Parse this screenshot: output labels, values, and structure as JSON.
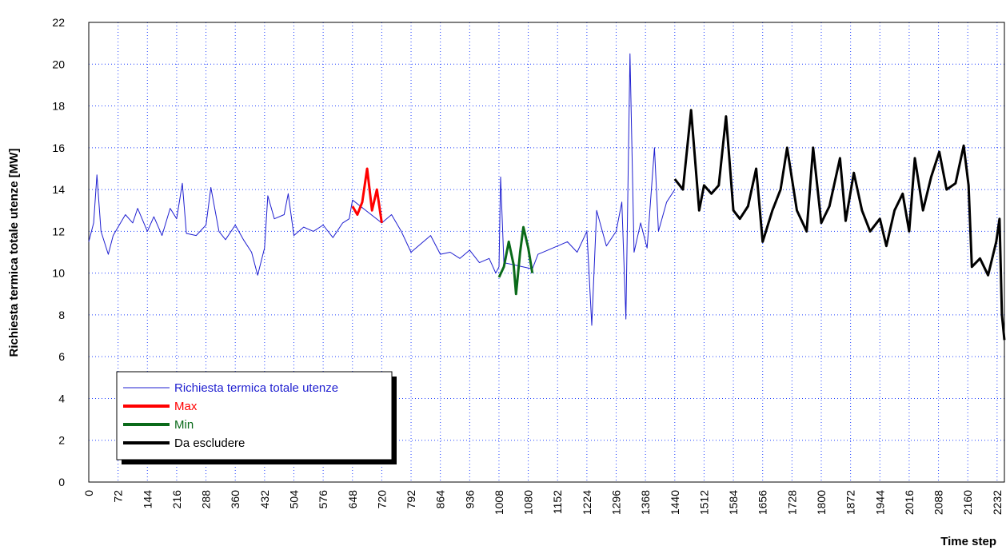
{
  "chart_data": {
    "type": "line",
    "ylabel": "Richiesta termica totale utenze [MW]",
    "xlabel": "Time step",
    "xlim": [
      0,
      2250
    ],
    "ylim": [
      0,
      22
    ],
    "xticks": [
      0,
      72,
      144,
      216,
      288,
      360,
      432,
      504,
      576,
      648,
      720,
      792,
      864,
      936,
      1008,
      1080,
      1152,
      1224,
      1296,
      1368,
      1440,
      1512,
      1584,
      1656,
      1728,
      1800,
      1872,
      1944,
      2016,
      2088,
      2160,
      2232
    ],
    "yticks": [
      0,
      2,
      4,
      6,
      8,
      10,
      12,
      14,
      16,
      18,
      20,
      22
    ],
    "grid": true,
    "legend": "lower left",
    "series": [
      {
        "name": "Richiesta termica totale utenze",
        "color": "#1f1fd0",
        "x": [
          0,
          12,
          20,
          30,
          48,
          60,
          72,
          90,
          108,
          120,
          144,
          160,
          180,
          200,
          216,
          230,
          240,
          264,
          288,
          300,
          320,
          336,
          360,
          380,
          400,
          415,
          432,
          440,
          456,
          480,
          490,
          504,
          528,
          552,
          576,
          600,
          624,
          640,
          648,
          720,
          744,
          768,
          792,
          816,
          840,
          864,
          888,
          912,
          936,
          960,
          984,
          1000,
          1008,
          1012,
          1020,
          1090,
          1104,
          1128,
          1152,
          1176,
          1200,
          1224,
          1236,
          1248,
          1272,
          1296,
          1310,
          1320,
          1330,
          1340,
          1356,
          1372,
          1390,
          1400,
          1420,
          1440
        ],
        "values": [
          11.5,
          12.4,
          14.7,
          12.0,
          10.9,
          11.8,
          12.2,
          12.8,
          12.4,
          13.1,
          12.0,
          12.7,
          11.8,
          13.1,
          12.6,
          14.3,
          11.9,
          11.8,
          12.3,
          14.1,
          12.0,
          11.6,
          12.3,
          11.6,
          11.0,
          9.9,
          11.2,
          13.7,
          12.6,
          12.8,
          13.8,
          11.8,
          12.2,
          12.0,
          12.3,
          11.7,
          12.4,
          12.6,
          13.5,
          12.4,
          12.8,
          12.0,
          11.0,
          11.4,
          11.8,
          10.9,
          11.0,
          10.7,
          11.1,
          10.5,
          10.7,
          10.0,
          10.3,
          14.6,
          10.5,
          10.2,
          10.9,
          11.1,
          11.3,
          11.5,
          11.0,
          12.0,
          7.5,
          13.0,
          11.3,
          12.0,
          13.4,
          7.8,
          20.5,
          11.0,
          12.4,
          11.2,
          16.0,
          12.0,
          13.4,
          14.0
        ]
      },
      {
        "name": "Max",
        "color": "#ff0000",
        "x": [
          648,
          660,
          672,
          684,
          696,
          708,
          720
        ],
        "values": [
          13.2,
          12.8,
          13.4,
          15.0,
          13.0,
          14.0,
          12.4
        ]
      },
      {
        "name": "Min",
        "color": "#0a6a1a",
        "x": [
          1008,
          1020,
          1032,
          1044,
          1050,
          1060,
          1068,
          1080,
          1090
        ],
        "values": [
          9.8,
          10.3,
          11.5,
          10.4,
          9.0,
          11.0,
          12.2,
          11.2,
          10.0
        ]
      },
      {
        "name": "Da escludere",
        "color": "#000000",
        "x": [
          1440,
          1460,
          1480,
          1500,
          1512,
          1530,
          1548,
          1566,
          1584,
          1600,
          1620,
          1640,
          1656,
          1680,
          1700,
          1716,
          1740,
          1764,
          1780,
          1800,
          1820,
          1846,
          1860,
          1880,
          1900,
          1920,
          1944,
          1960,
          1980,
          2000,
          2016,
          2030,
          2050,
          2070,
          2090,
          2108,
          2130,
          2150,
          2162,
          2170,
          2190,
          2210,
          2230,
          2238,
          2244,
          2250
        ],
        "values": [
          14.5,
          14.0,
          17.8,
          13.0,
          14.2,
          13.8,
          14.2,
          17.5,
          13.0,
          12.6,
          13.2,
          15.0,
          11.5,
          13.0,
          14.0,
          16.0,
          13.0,
          12.0,
          16.0,
          12.4,
          13.2,
          15.5,
          12.5,
          14.8,
          13.0,
          12.0,
          12.6,
          11.3,
          13.0,
          13.8,
          12.0,
          15.5,
          13.0,
          14.6,
          15.8,
          14.0,
          14.3,
          16.1,
          14.2,
          10.3,
          10.7,
          9.9,
          11.5,
          12.6,
          8.0,
          6.8
        ]
      }
    ]
  }
}
